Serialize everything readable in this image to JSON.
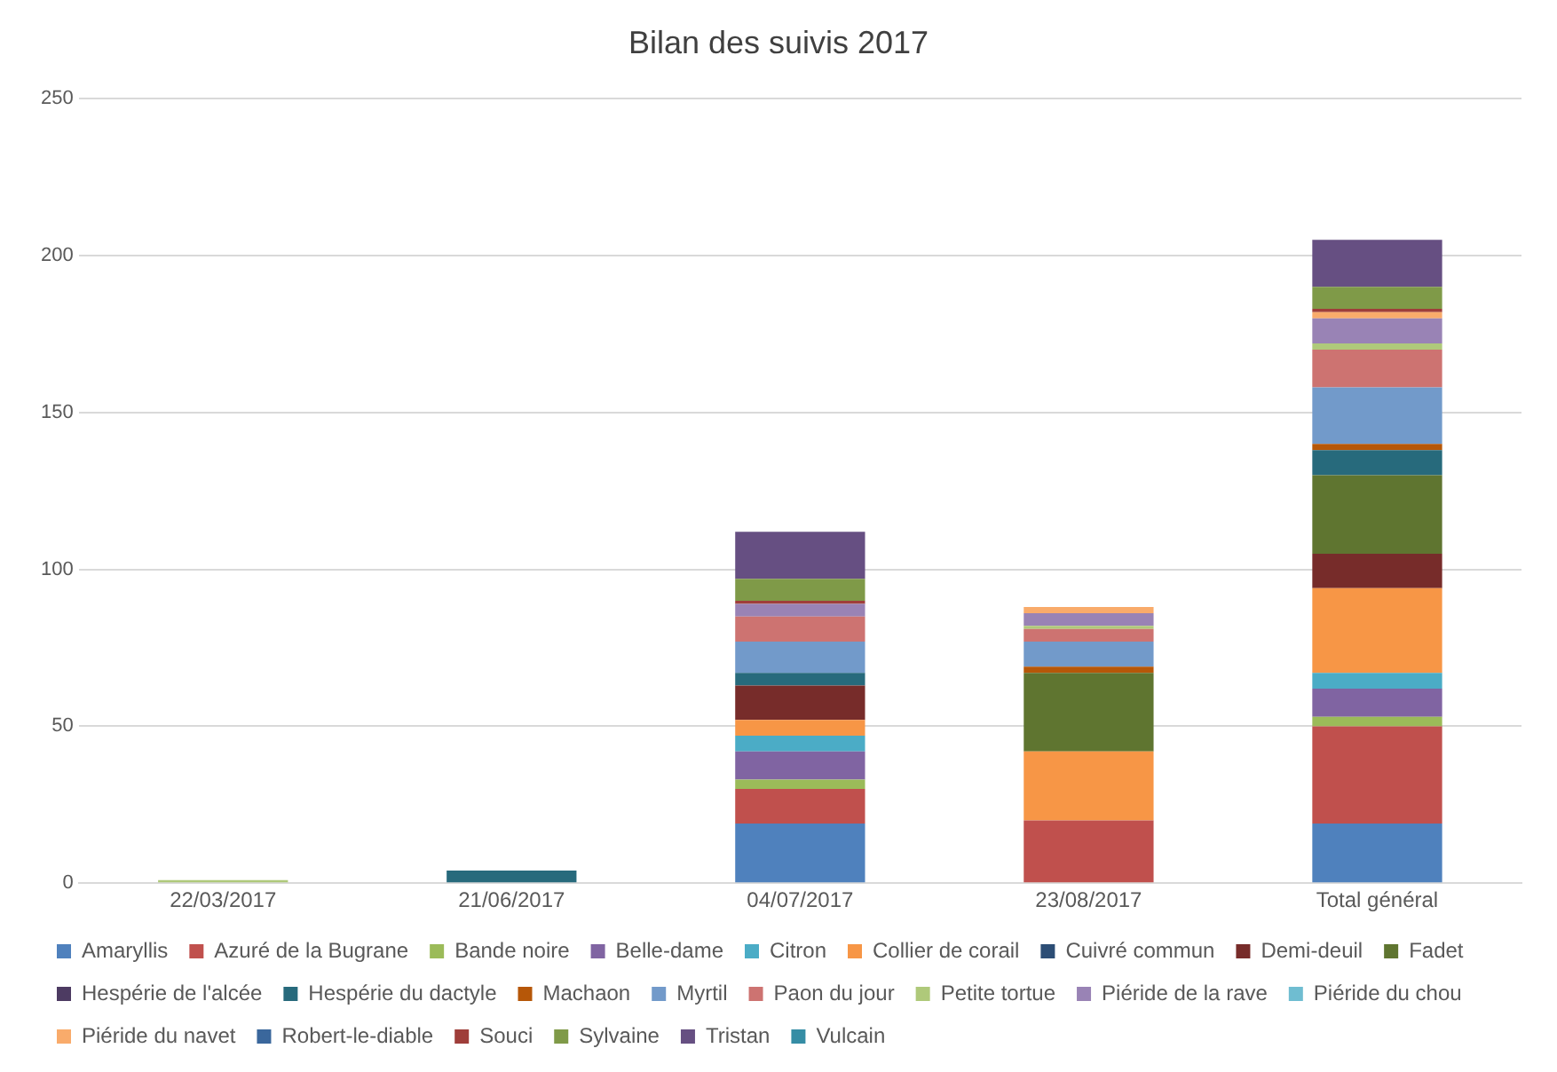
{
  "chart_data": {
    "type": "bar",
    "title": "Bilan des suivis 2017",
    "stacked": true,
    "categories": [
      "22/03/2017",
      "21/06/2017",
      "04/07/2017",
      "23/08/2017",
      "Total général"
    ],
    "ylim": [
      0,
      250
    ],
    "yticks": [
      0,
      50,
      100,
      150,
      200,
      250
    ],
    "grid": "y",
    "legend": "bottom",
    "series": [
      {
        "name": "Amaryllis",
        "color": "#4f81bd",
        "values": [
          0,
          0,
          19,
          0,
          19
        ]
      },
      {
        "name": "Azuré de la Bugrane",
        "color": "#c0504d",
        "values": [
          0,
          0,
          11,
          20,
          31
        ]
      },
      {
        "name": "Bande noire",
        "color": "#9bbb59",
        "values": [
          0,
          0,
          3,
          0,
          3
        ]
      },
      {
        "name": "Belle-dame",
        "color": "#8064a2",
        "values": [
          0,
          0,
          9,
          0,
          9
        ]
      },
      {
        "name": "Citron",
        "color": "#4bacc6",
        "values": [
          0,
          0,
          5,
          0,
          5
        ]
      },
      {
        "name": "Collier de corail",
        "color": "#f79646",
        "values": [
          0,
          0,
          5,
          22,
          27
        ]
      },
      {
        "name": "Cuivré commun",
        "color": "#2c4d75",
        "values": [
          0,
          0,
          0,
          0,
          0
        ]
      },
      {
        "name": "Demi-deuil",
        "color": "#772c2a",
        "values": [
          0,
          0,
          11,
          0,
          11
        ]
      },
      {
        "name": "Fadet",
        "color": "#5f7530",
        "values": [
          0,
          0,
          0,
          25,
          25
        ]
      },
      {
        "name": "Hespérie de l'alcée",
        "color": "#4d3b62",
        "values": [
          0,
          0,
          0,
          0,
          0
        ]
      },
      {
        "name": "Hespérie du dactyle",
        "color": "#276a7c",
        "values": [
          0,
          4,
          4,
          0,
          8
        ]
      },
      {
        "name": "Machaon",
        "color": "#b65708",
        "values": [
          0,
          0,
          0,
          2,
          2
        ]
      },
      {
        "name": "Myrtil",
        "color": "#729aca",
        "values": [
          0,
          0,
          10,
          8,
          18
        ]
      },
      {
        "name": "Paon du jour",
        "color": "#cd7371",
        "values": [
          0,
          0,
          8,
          4,
          12
        ]
      },
      {
        "name": "Petite tortue",
        "color": "#afc97a",
        "values": [
          1,
          0,
          0,
          1,
          2
        ]
      },
      {
        "name": "Piéride de la rave",
        "color": "#9983b5",
        "values": [
          0,
          0,
          4,
          4,
          8
        ]
      },
      {
        "name": "Piéride du chou",
        "color": "#6fbdd1",
        "values": [
          0,
          0,
          0,
          0,
          0
        ]
      },
      {
        "name": "Piéride du navet",
        "color": "#f9ab6b",
        "values": [
          0,
          0,
          0,
          2,
          2
        ]
      },
      {
        "name": "Robert-le-diable",
        "color": "#3a679c",
        "values": [
          0,
          0,
          0,
          0,
          0
        ]
      },
      {
        "name": "Souci",
        "color": "#9f3e3a",
        "values": [
          0,
          0,
          1,
          0,
          1
        ]
      },
      {
        "name": "Sylvaine",
        "color": "#7f9a48",
        "values": [
          0,
          0,
          7,
          0,
          7
        ]
      },
      {
        "name": "Tristan",
        "color": "#664f82",
        "values": [
          0,
          0,
          15,
          0,
          15
        ]
      },
      {
        "name": "Vulcain",
        "color": "#358da5",
        "values": [
          0,
          0,
          0,
          0,
          0
        ]
      }
    ]
  }
}
